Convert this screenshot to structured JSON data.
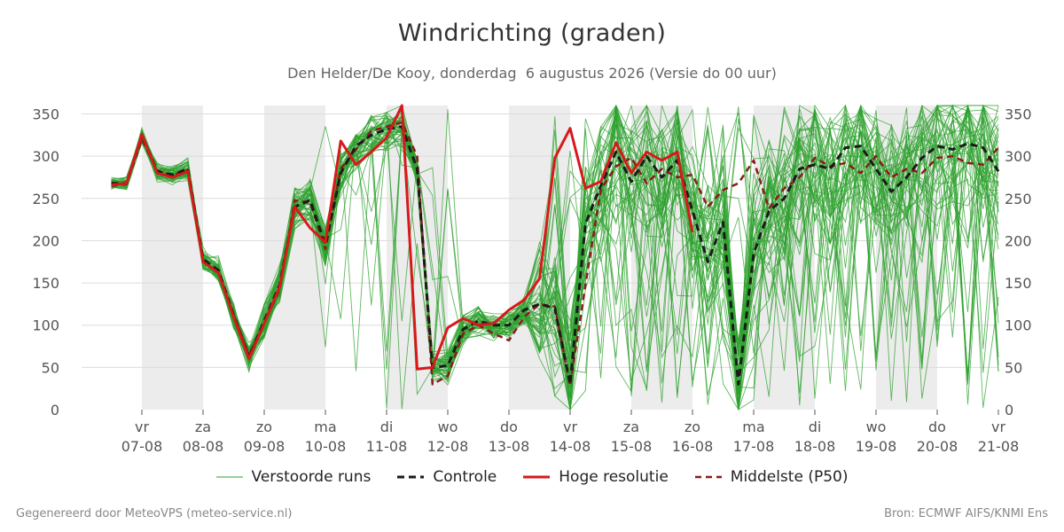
{
  "chart_data": {
    "type": "line",
    "title": "Windrichting (graden)",
    "subtitle": "Den Helder/De Kooy, donderdag  6 augustus 2026 (Versie do 00 uur)",
    "ylim": [
      0,
      360
    ],
    "y_ticks": [
      0,
      50,
      100,
      150,
      200,
      250,
      300,
      350
    ],
    "x_day_start": 0.5,
    "x_day_end": 15.0,
    "x_ticks": [
      {
        "day": "vr",
        "date": "07-08",
        "x": 1
      },
      {
        "day": "za",
        "date": "08-08",
        "x": 2
      },
      {
        "day": "zo",
        "date": "09-08",
        "x": 3
      },
      {
        "day": "ma",
        "date": "10-08",
        "x": 4
      },
      {
        "day": "di",
        "date": "11-08",
        "x": 5
      },
      {
        "day": "wo",
        "date": "12-08",
        "x": 6
      },
      {
        "day": "do",
        "date": "13-08",
        "x": 7
      },
      {
        "day": "vr",
        "date": "14-08",
        "x": 8
      },
      {
        "day": "za",
        "date": "15-08",
        "x": 9
      },
      {
        "day": "zo",
        "date": "16-08",
        "x": 10
      },
      {
        "day": "ma",
        "date": "17-08",
        "x": 11
      },
      {
        "day": "di",
        "date": "18-08",
        "x": 12
      },
      {
        "day": "wo",
        "date": "19-08",
        "x": 13
      },
      {
        "day": "do",
        "date": "20-08",
        "x": 14
      },
      {
        "day": "vr",
        "date": "21-08",
        "x": 15
      }
    ],
    "shaded_weekends": [
      [
        1,
        2
      ],
      [
        3,
        4
      ],
      [
        5,
        6
      ],
      [
        7,
        8
      ],
      [
        9,
        10
      ],
      [
        11,
        12
      ],
      [
        13,
        14
      ]
    ],
    "grid": true,
    "legend_position": "bottom",
    "ensemble_member_count": 50,
    "series": [
      {
        "name": "Controle",
        "color": "#1a1a1a",
        "dash": true,
        "x": [
          0.5,
          0.75,
          1.0,
          1.25,
          1.5,
          1.75,
          2.0,
          2.25,
          2.5,
          2.75,
          3.0,
          3.25,
          3.5,
          3.75,
          4.0,
          4.25,
          4.5,
          4.75,
          5.0,
          5.25,
          5.5,
          5.75,
          6.0,
          6.25,
          6.5,
          6.75,
          7.0,
          7.25,
          7.5,
          7.75,
          8.0,
          8.25,
          8.5,
          8.75,
          9.0,
          9.25,
          9.5,
          9.75,
          10.0,
          10.25,
          10.5,
          10.75,
          11.0,
          11.25,
          11.5,
          11.75,
          12.0,
          12.25,
          12.5,
          12.75,
          13.0,
          13.25,
          13.5,
          13.75,
          14.0,
          14.25,
          14.5,
          14.75,
          15.0
        ],
        "values": [
          268,
          268,
          325,
          282,
          278,
          285,
          178,
          165,
          112,
          62,
          105,
          148,
          240,
          248,
          195,
          280,
          312,
          325,
          332,
          335,
          285,
          50,
          52,
          95,
          105,
          100,
          100,
          118,
          125,
          120,
          30,
          220,
          265,
          305,
          270,
          300,
          275,
          295,
          235,
          175,
          222,
          30,
          185,
          235,
          250,
          285,
          290,
          285,
          310,
          312,
          285,
          258,
          275,
          298,
          312,
          308,
          315,
          310,
          282
        ]
      },
      {
        "name": "Hoge resolutie",
        "color": "#d7191c",
        "dash": false,
        "x": [
          0.5,
          0.75,
          1.0,
          1.25,
          1.5,
          1.75,
          2.0,
          2.25,
          2.5,
          2.75,
          3.0,
          3.25,
          3.5,
          3.75,
          4.0,
          4.25,
          4.5,
          4.75,
          5.0,
          5.25,
          5.5,
          5.75,
          6.0,
          6.25,
          6.5,
          6.75,
          7.0,
          7.25,
          7.5,
          7.75,
          8.0,
          8.25,
          8.5,
          8.75,
          9.0,
          9.25,
          9.5,
          9.75,
          10.0
        ],
        "values": [
          266,
          268,
          326,
          280,
          275,
          282,
          175,
          162,
          110,
          60,
          102,
          145,
          240,
          215,
          198,
          318,
          290,
          305,
          322,
          360,
          48,
          50,
          97,
          108,
          100,
          102,
          118,
          130,
          155,
          298,
          333,
          262,
          270,
          316,
          280,
          305,
          295,
          305,
          210
        ]
      },
      {
        "name": "Middelste (P50)",
        "color": "#8b1a1a",
        "dash": true,
        "x": [
          0.5,
          0.75,
          1.0,
          1.25,
          1.5,
          1.75,
          2.0,
          2.25,
          2.5,
          2.75,
          3.0,
          3.25,
          3.5,
          3.75,
          4.0,
          4.25,
          4.5,
          4.75,
          5.0,
          5.25,
          5.5,
          5.75,
          6.0,
          6.25,
          6.5,
          6.75,
          7.0,
          7.25,
          7.5,
          7.75,
          8.0,
          8.25,
          8.5,
          8.75,
          9.0,
          9.25,
          9.5,
          9.75,
          10.0,
          10.25,
          10.5,
          10.75,
          11.0,
          11.25,
          11.5,
          11.75,
          12.0,
          12.25,
          12.5,
          12.75,
          13.0,
          13.25,
          13.5,
          13.75,
          14.0,
          14.25,
          14.5,
          14.75,
          15.0
        ],
        "values": [
          265,
          267,
          320,
          283,
          277,
          284,
          176,
          162,
          112,
          65,
          102,
          142,
          248,
          245,
          190,
          285,
          308,
          330,
          335,
          340,
          300,
          30,
          40,
          90,
          100,
          90,
          82,
          110,
          125,
          122,
          28,
          148,
          260,
          288,
          298,
          268,
          285,
          275,
          278,
          240,
          260,
          268,
          295,
          238,
          262,
          275,
          298,
          288,
          292,
          280,
          300,
          275,
          285,
          280,
          298,
          300,
          292,
          290,
          310
        ]
      }
    ]
  },
  "legend": {
    "members": "Verstoorde runs",
    "control": "Controle",
    "hires": "Hoge resolutie",
    "median": "Middelste (P50)"
  },
  "colors": {
    "members": "#2ca02c",
    "control": "#1a1a1a",
    "hires": "#d7191c",
    "median": "#8b1a1a",
    "weekend": "#ececec",
    "grid": "#dcdcdc"
  },
  "footer": {
    "left": "Gegenereerd door MeteoVPS (meteo-service.nl)",
    "right": "Bron: ECMWF AIFS/KNMI Ens"
  }
}
